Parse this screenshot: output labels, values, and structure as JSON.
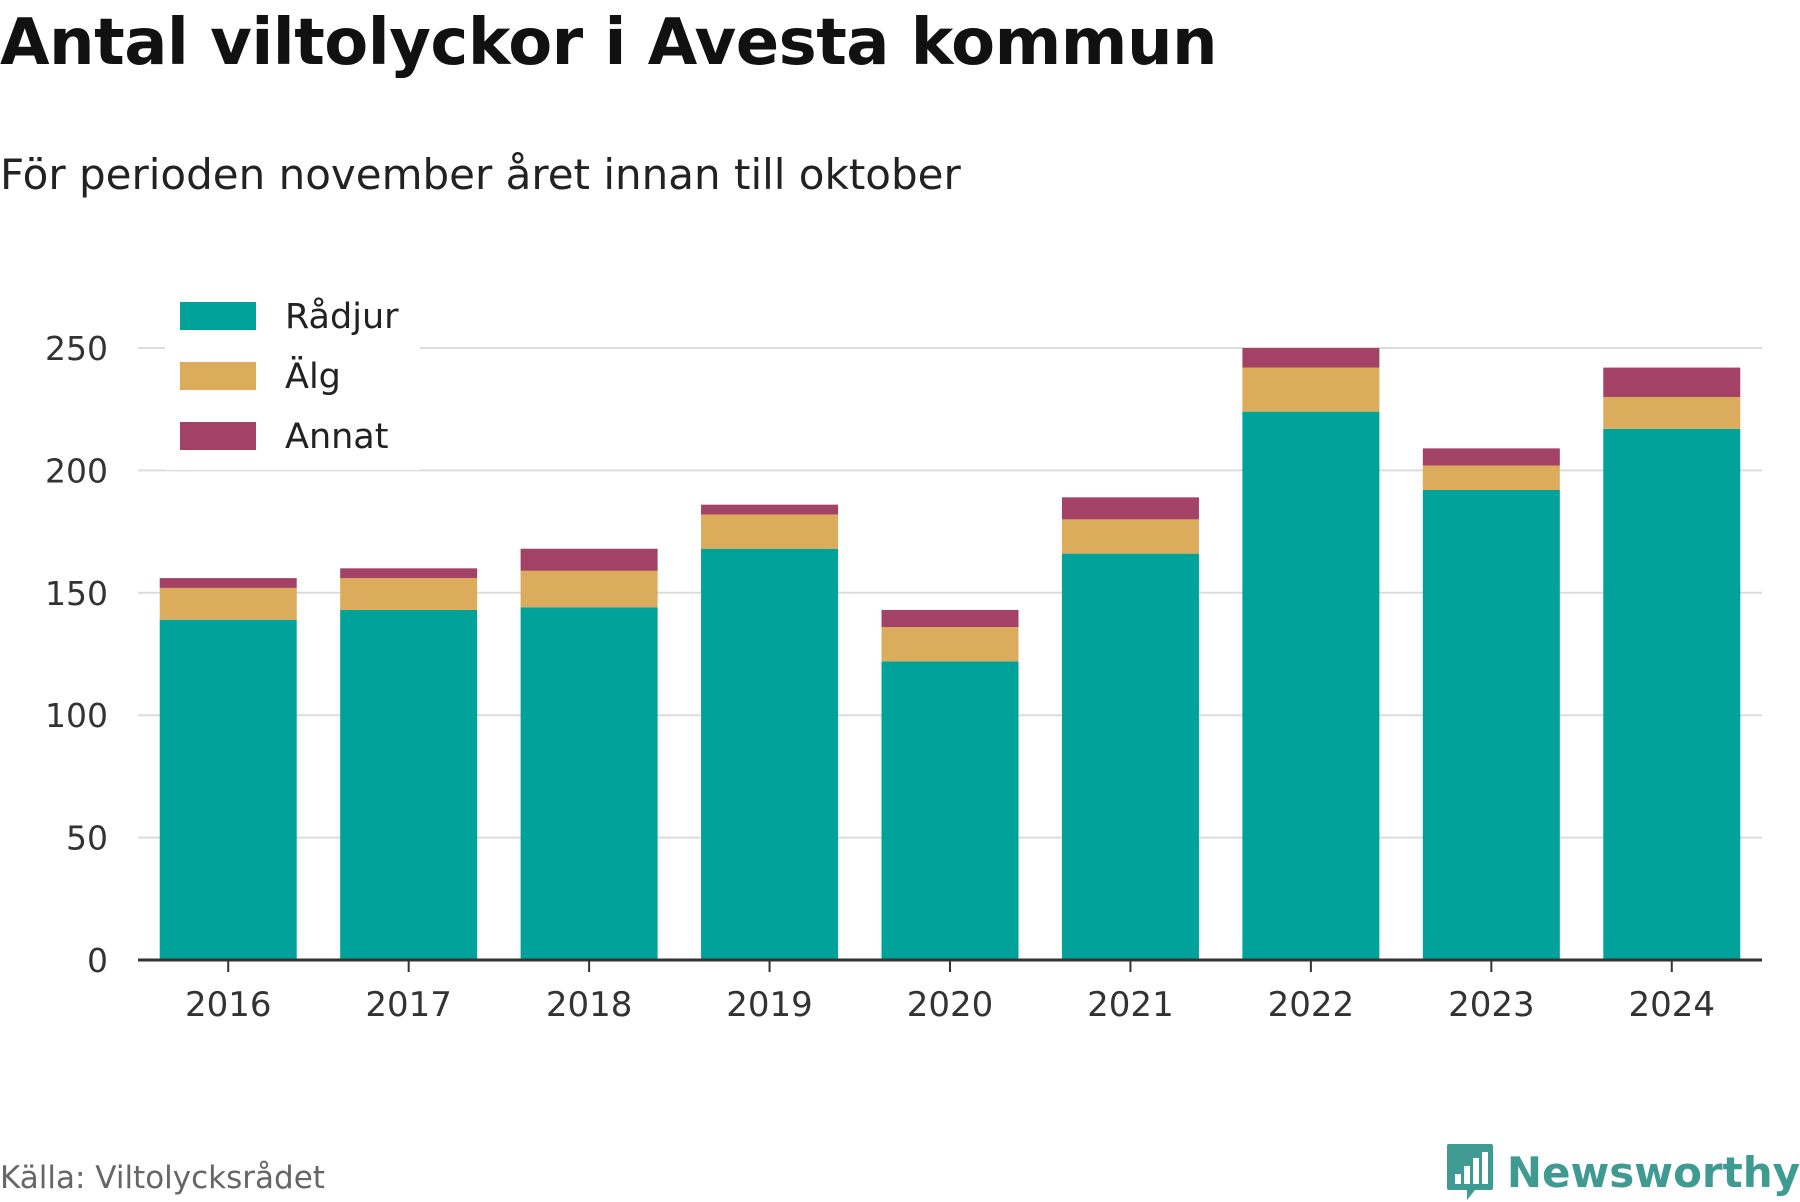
{
  "header": {
    "title": "Antal viltolyckor i Avesta kommun",
    "subtitle": "För perioden november året innan till oktober"
  },
  "footer": {
    "source": "Källa: Viltolycksrådet",
    "brand": "Newsworthy",
    "brand_icon": "bar-chart-speech-bubble-icon",
    "brand_color": "#3f9b92"
  },
  "chart_data": {
    "type": "bar",
    "stacked": true,
    "categories": [
      "2016",
      "2017",
      "2018",
      "2019",
      "2020",
      "2021",
      "2022",
      "2023",
      "2024"
    ],
    "series": [
      {
        "name": "Rådjur",
        "color": "#00a29a",
        "values": [
          139,
          143,
          144,
          168,
          122,
          166,
          224,
          192,
          217
        ]
      },
      {
        "name": "Älg",
        "color": "#dbac5b",
        "values": [
          13,
          13,
          15,
          14,
          14,
          14,
          18,
          10,
          13
        ]
      },
      {
        "name": "Annat",
        "color": "#a44266",
        "values": [
          4,
          4,
          9,
          4,
          7,
          9,
          8,
          7,
          12
        ]
      }
    ],
    "yticks": [
      0,
      50,
      100,
      150,
      200,
      250
    ],
    "ylim": [
      0,
      250
    ],
    "grid": true,
    "legend_position": "top-left"
  }
}
